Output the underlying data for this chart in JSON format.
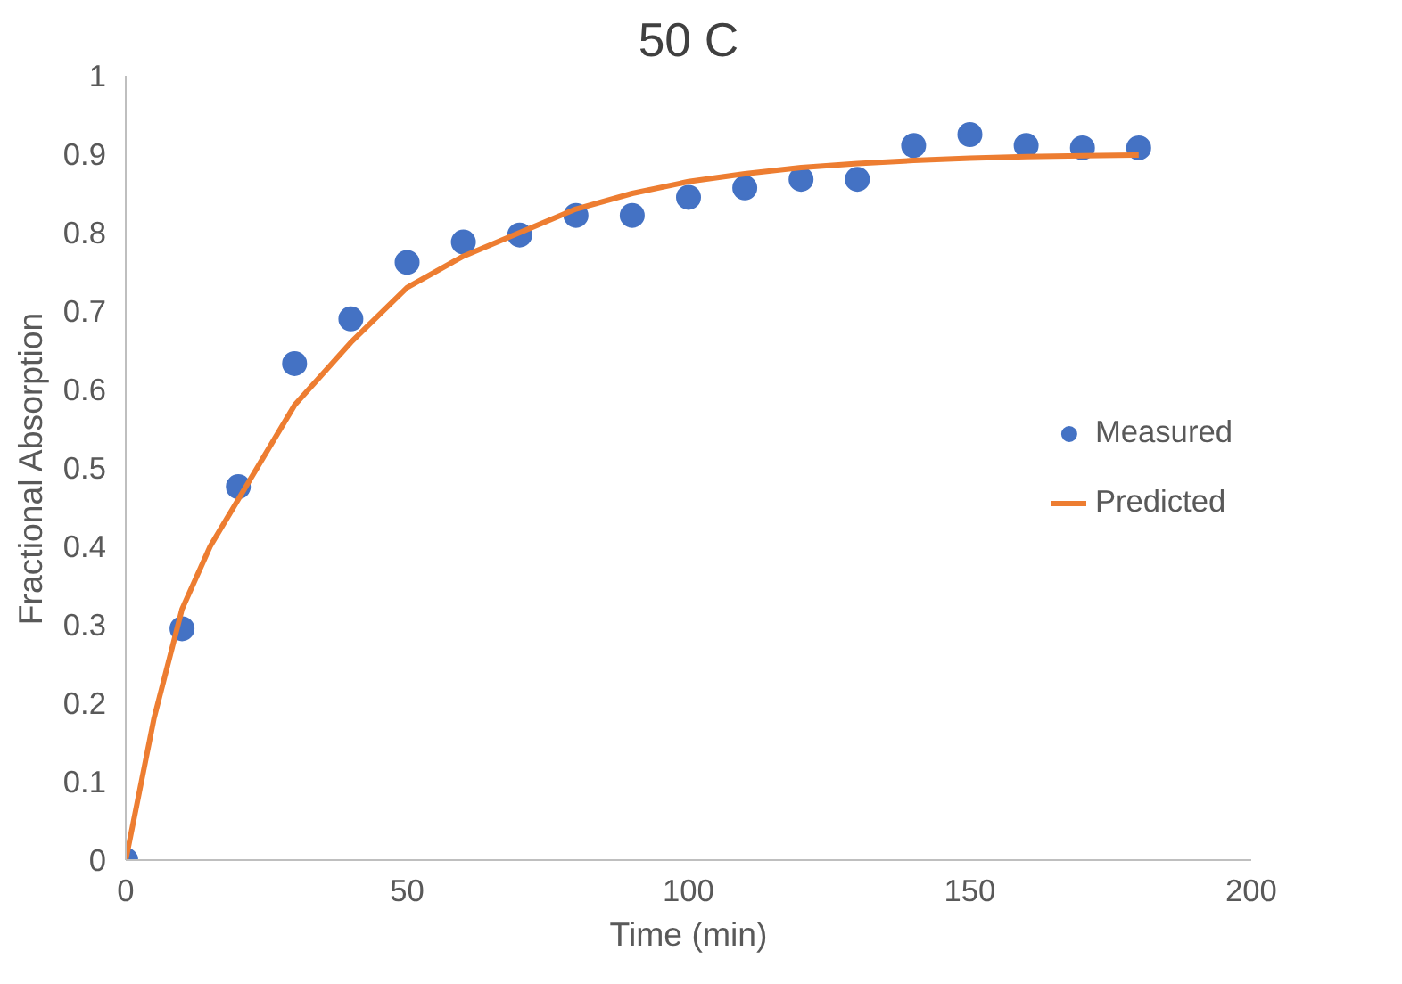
{
  "chart_data": {
    "type": "scatter",
    "title": "50 C",
    "xlabel": "Time (min)",
    "ylabel": "Fractional Absorption",
    "xlim": [
      0,
      200
    ],
    "xticks": [
      0,
      50,
      100,
      150,
      200
    ],
    "ylim": [
      0,
      1
    ],
    "yticks": [
      0,
      0.1,
      0.2,
      0.3,
      0.4,
      0.5,
      0.6,
      0.7,
      0.8,
      0.9,
      1
    ],
    "grid": false,
    "legend": "right",
    "series": [
      {
        "name": "Measured",
        "marker": "circle",
        "color": "#4472c4",
        "x": [
          0,
          10,
          20,
          30,
          40,
          50,
          60,
          70,
          80,
          90,
          100,
          110,
          120,
          130,
          140,
          150,
          160,
          170,
          180
        ],
        "values": [
          0,
          0.295,
          0.476,
          0.633,
          0.69,
          0.762,
          0.788,
          0.797,
          0.822,
          0.822,
          0.845,
          0.857,
          0.868,
          0.868,
          0.911,
          0.925,
          0.911,
          0.908,
          0.908
        ]
      },
      {
        "name": "Predicted",
        "type": "line",
        "line_style": "solid",
        "color": "#ed7d31",
        "x": [
          0,
          5,
          10,
          15,
          20,
          30,
          40,
          50,
          60,
          70,
          80,
          90,
          100,
          110,
          120,
          130,
          140,
          150,
          160,
          170,
          180
        ],
        "values": [
          0,
          0.18,
          0.32,
          0.4,
          0.46,
          0.58,
          0.66,
          0.73,
          0.77,
          0.8,
          0.83,
          0.85,
          0.865,
          0.875,
          0.883,
          0.888,
          0.892,
          0.895,
          0.897,
          0.898,
          0.899
        ]
      }
    ]
  }
}
